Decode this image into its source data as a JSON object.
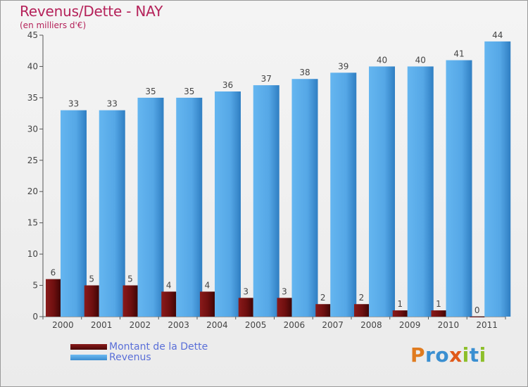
{
  "title": "Revenus/Dette - NAY",
  "subtitle": "(en milliers d'€)",
  "colors": {
    "debt": "#6e0f0f",
    "revenue": "#55a7e6",
    "title": "#b5225a",
    "legend_text": "#5a6fd8"
  },
  "chart_data": {
    "type": "bar",
    "categories": [
      "2000",
      "2001",
      "2002",
      "2003",
      "2004",
      "2005",
      "2006",
      "2007",
      "2008",
      "2009",
      "2010",
      "2011"
    ],
    "series": [
      {
        "name": "Montant de la Dette",
        "values": [
          6,
          5,
          5,
          4,
          4,
          3,
          3,
          2,
          2,
          1,
          1,
          0
        ]
      },
      {
        "name": "Revenus",
        "values": [
          33,
          33,
          35,
          35,
          36,
          37,
          38,
          39,
          40,
          40,
          41,
          44
        ]
      }
    ],
    "ylim": [
      0,
      45
    ],
    "yticks": [
      0,
      5,
      10,
      15,
      20,
      25,
      30,
      35,
      40,
      45
    ],
    "grid": false,
    "legend_placement": "bottom-left"
  },
  "legend": [
    {
      "label": "Montant de la Dette"
    },
    {
      "label": "Revenus"
    }
  ],
  "logo": {
    "letters": [
      "P",
      "r",
      "o",
      "x",
      "i",
      "t",
      "i"
    ]
  }
}
